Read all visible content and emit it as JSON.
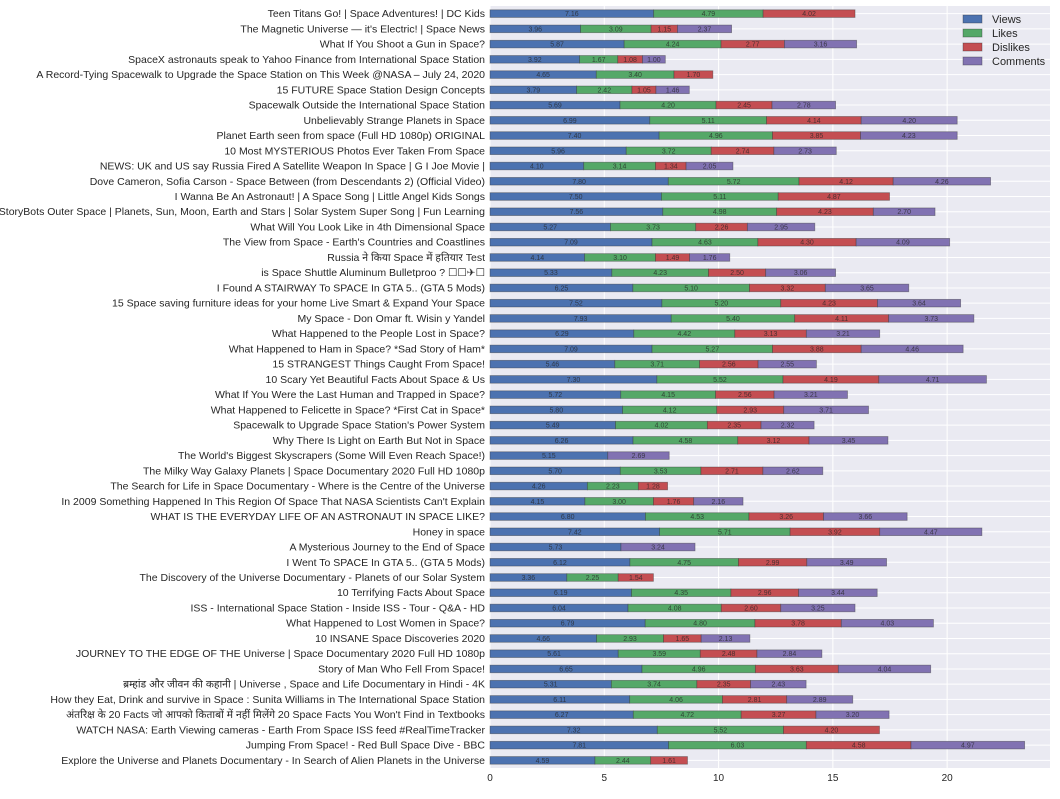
{
  "chart_data": {
    "type": "bar",
    "orientation": "horizontal",
    "stacked": true,
    "title": "",
    "xlabel": "",
    "ylabel": "",
    "xlim": [
      0,
      24.5
    ],
    "xticks": [
      0,
      5,
      10,
      15,
      20
    ],
    "grid": true,
    "legend_position": "top-right",
    "value_labels": true,
    "series": [
      {
        "name": "Views",
        "color": "#4c72b0"
      },
      {
        "name": "Likes",
        "color": "#55a868"
      },
      {
        "name": "Dislikes",
        "color": "#c44e52"
      },
      {
        "name": "Comments",
        "color": "#8172b2"
      }
    ],
    "categories": [
      "Teen Titans Go! | Space Adventures! | DC Kids",
      "The Magnetic Universe — it's Electric! | Space News",
      "What If You Shoot a Gun in Space?",
      "SpaceX astronauts speak to Yahoo Finance from International Space Station",
      "A Record-Tying Spacewalk to Upgrade the Space Station on This Week @NASA – July 24, 2020",
      "15 FUTURE Space Station Design Concepts",
      "Spacewalk Outside the International Space Station",
      "Unbelievably Strange Planets in Space",
      "Planet Earth seen from space (Full HD 1080p) ORIGINAL",
      "10 Most MYSTERIOUS Photos Ever Taken From Space",
      "NEWS: UK and US say Russia Fired A Satellite Weapon In Space | G I Joe Movie |",
      "Dove Cameron, Sofia Carson - Space Between (from Descendants 2) (Official Video)",
      "I Wanna Be An Astronaut! | A Space Song |  Little Angel Kids Songs",
      "StoryBots Outer Space | Planets, Sun, Moon, Earth and Stars | Solar System Super Song | Fun Learning",
      "What Will You Look Like in 4th Dimensional Space",
      "The View from Space - Earth's Countries and Coastlines",
      "Russia ने किया Space में हतियार Test",
      "is Space Shuttle Aluminum Bulletproo ? ☐☐✈☐",
      "I Found A STAIRWAY To SPACE In GTA 5.. (GTA 5 Mods)",
      "15 Space saving furniture ideas for your home Live Smart & Expand Your Space",
      "My Space - Don Omar ft. Wisin y Yandel",
      "What Happened to the People Lost in Space?",
      "What Happened to Ham in Space? *Sad Story of Ham*",
      "15 STRANGEST Things Caught From Space!",
      "10 Scary Yet Beautiful Facts About Space & Us",
      "What If You Were the Last Human and Trapped in Space?",
      "What Happened to Felicette in Space? *First Cat in Space*",
      "Spacewalk to Upgrade Space Station's Power System",
      "Why There Is Light on Earth But Not in Space",
      "The World's Biggest Skyscrapers (Some Will Even Reach Space!)",
      "The Milky Way Galaxy Planets | Space Documentary 2020 Full HD 1080p",
      "The Search for Life in Space Documentary - Where is the Centre of the Universe",
      "In 2009 Something Happened In This Region Of Space That NASA Scientists Can't Explain",
      "WHAT IS THE EVERYDAY LIFE OF AN ASTRONAUT IN SPACE LIKE?",
      "Honey in space",
      "A Mysterious Journey to the End of Space",
      "I Went To SPACE In GTA 5.. (GTA 5 Mods)",
      "The Discovery of the Universe Documentary - Planets of our Solar System",
      "10 Terrifying Facts About Space",
      "ISS - International Space Station - Inside ISS - Tour - Q&A - HD",
      "What Happened to Lost Women in Space?",
      "10 INSANE Space Discoveries 2020",
      "JOURNEY TO THE EDGE OF THE Universe | Space Documentary 2020 Full HD 1080p",
      "Story of Man Who Fell From Space!",
      "ब्रम्हांड और जीवन की कहानी | Universe , Space and Life Documentary in Hindi - 4K",
      "How they Eat, Drink and survive in Space : Sunita Williams in The International Space Station",
      "अंतरिक्ष के 20 Facts जो आपको किताबों में नहीं मिलेंगे 20 Space Facts You Won't Find in Textbooks",
      "WATCH NASA: Earth Viewing cameras - Earth From Space ISS feed #RealTimeTracker",
      "Jumping From Space! - Red Bull Space Dive - BBC",
      "Explore the Universe and Planets Documentary - In Search of Alien Planets in the Universe"
    ],
    "values": [
      [
        7.16,
        4.79,
        4.02,
        0
      ],
      [
        3.96,
        3.09,
        1.15,
        2.37
      ],
      [
        5.87,
        4.24,
        2.77,
        3.16
      ],
      [
        3.92,
        1.67,
        1.08,
        1.0
      ],
      [
        4.65,
        3.4,
        1.7,
        0
      ],
      [
        3.79,
        2.42,
        1.05,
        1.46
      ],
      [
        5.69,
        4.2,
        2.45,
        2.78
      ],
      [
        6.99,
        5.11,
        4.14,
        4.2
      ],
      [
        7.4,
        4.96,
        3.85,
        4.23
      ],
      [
        5.96,
        3.72,
        2.74,
        2.73
      ],
      [
        4.1,
        3.14,
        1.34,
        2.05
      ],
      [
        7.8,
        5.72,
        4.12,
        4.26
      ],
      [
        7.5,
        5.11,
        4.87,
        0
      ],
      [
        7.56,
        4.98,
        4.23,
        2.7
      ],
      [
        5.27,
        3.73,
        2.26,
        2.95
      ],
      [
        7.09,
        4.63,
        4.3,
        4.09
      ],
      [
        4.14,
        3.1,
        1.49,
        1.76
      ],
      [
        5.33,
        4.23,
        2.5,
        3.06
      ],
      [
        6.25,
        5.1,
        3.32,
        3.65
      ],
      [
        7.52,
        5.2,
        4.23,
        3.64
      ],
      [
        7.93,
        5.4,
        4.11,
        3.73
      ],
      [
        6.29,
        4.42,
        3.13,
        3.21
      ],
      [
        7.09,
        5.27,
        3.88,
        4.46
      ],
      [
        5.46,
        3.71,
        2.56,
        2.55
      ],
      [
        7.3,
        5.52,
        4.19,
        4.71
      ],
      [
        5.72,
        4.15,
        2.56,
        3.21
      ],
      [
        5.8,
        4.12,
        2.93,
        3.71
      ],
      [
        5.49,
        4.02,
        2.35,
        2.32
      ],
      [
        6.26,
        4.58,
        3.12,
        3.45
      ],
      [
        5.15,
        0,
        0,
        2.69
      ],
      [
        5.7,
        3.53,
        2.71,
        2.62
      ],
      [
        4.26,
        2.23,
        1.28,
        0
      ],
      [
        4.15,
        3.0,
        1.76,
        2.16
      ],
      [
        6.8,
        4.53,
        3.26,
        3.66
      ],
      [
        7.42,
        5.71,
        3.92,
        4.47
      ],
      [
        5.73,
        0,
        0,
        3.24
      ],
      [
        6.12,
        4.75,
        2.99,
        3.49
      ],
      [
        3.36,
        2.25,
        1.54,
        0
      ],
      [
        6.19,
        4.35,
        2.96,
        3.44
      ],
      [
        6.04,
        4.08,
        2.6,
        3.25
      ],
      [
        6.79,
        4.8,
        3.78,
        4.03
      ],
      [
        4.66,
        2.93,
        1.65,
        2.13
      ],
      [
        5.61,
        3.59,
        2.48,
        2.84
      ],
      [
        6.65,
        4.96,
        3.63,
        4.04
      ],
      [
        5.31,
        3.74,
        2.35,
        2.43
      ],
      [
        6.11,
        4.06,
        2.81,
        2.89
      ],
      [
        6.27,
        4.72,
        3.27,
        3.2
      ],
      [
        7.32,
        5.52,
        4.2,
        0
      ],
      [
        7.81,
        6.03,
        4.58,
        4.97
      ],
      [
        4.59,
        2.44,
        1.61,
        0
      ]
    ]
  }
}
